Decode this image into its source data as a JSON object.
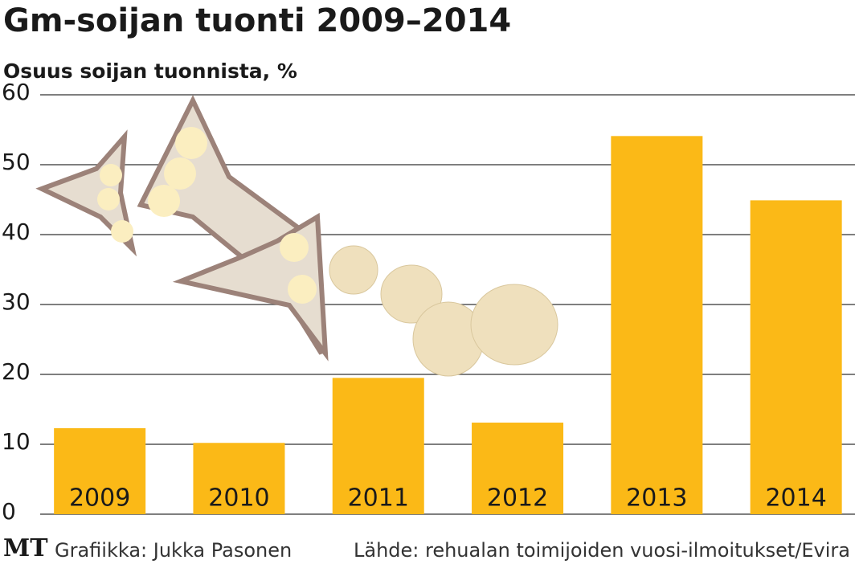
{
  "chart_data": {
    "type": "bar",
    "title": "Gm-soijan tuonti 2009–2014",
    "subtitle": "Osuus soijan tuonnista, %",
    "categories": [
      "2009",
      "2010",
      "2011",
      "2012",
      "2013",
      "2014"
    ],
    "values": [
      12.3,
      10.2,
      19.5,
      13.1,
      54.1,
      44.9
    ],
    "color": "#fbb917",
    "ylim": [
      0,
      60
    ],
    "yticks": [
      0,
      10,
      20,
      30,
      40,
      50,
      60
    ],
    "grid": true,
    "logo": "MT",
    "credit": "Grafiikka: Jukka Pasonen",
    "source": "Lähde: rehualan toimijoiden vuosi-ilmoitukset/Evira"
  }
}
